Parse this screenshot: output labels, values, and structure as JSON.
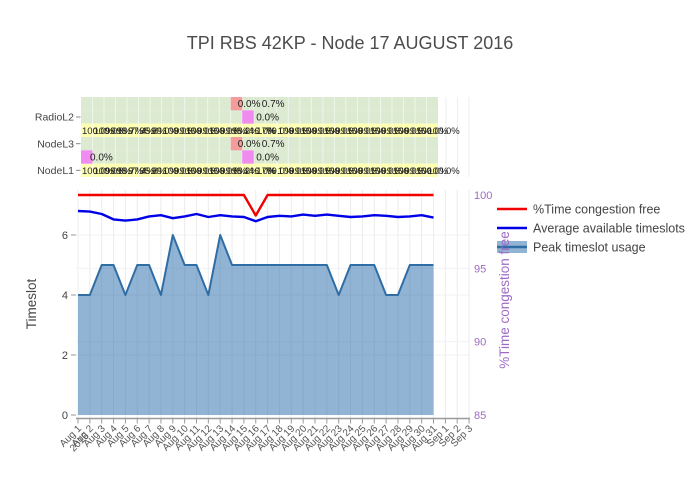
{
  "title": "TPI RBS 42KP - Node 17 AUGUST 2016",
  "legend": {
    "items": [
      {
        "label": "%Time congestion free"
      },
      {
        "label": "Average available timeslots"
      },
      {
        "label": "Peak timeslot usage"
      }
    ]
  },
  "chart_data": [
    {
      "type": "heatmap",
      "row_categories": [
        "RadioL2",
        "NodeL3",
        "NodeL1"
      ],
      "days": 31,
      "row_styles": [
        "green",
        "green",
        "yellow",
        "green",
        "green",
        "yellow"
      ],
      "palette": {
        "green": "#dcead2",
        "yellow": "#ffffb2",
        "red": "#f49c9c",
        "magenta": "#f08cf0"
      },
      "cells": [
        {
          "row": 0,
          "day": 14,
          "color": "red",
          "label": "0.0%",
          "dx": 7
        },
        {
          "row": 0,
          "day": 16,
          "color": null,
          "label": "0.7%",
          "dx": 8
        },
        {
          "row": 1,
          "day": 15,
          "color": "magenta",
          "label": "0.0%",
          "dx": 14
        },
        {
          "row": 3,
          "day": 14,
          "color": "red",
          "label": "0.0%",
          "dx": 7
        },
        {
          "row": 3,
          "day": 16,
          "color": null,
          "label": "0.7%",
          "dx": 8
        },
        {
          "row": 4,
          "day": 1,
          "color": "magenta",
          "label": "0.0%",
          "dx": 9
        },
        {
          "row": 4,
          "day": 15,
          "color": "magenta",
          "label": "0.0%",
          "dx": 14
        }
      ],
      "yellow_row_values": [
        "100.0%",
        "100.0%",
        "99.6%",
        "98.7%",
        "97.4%",
        "95.8%",
        "99.0%",
        "100.0%",
        "99.6%",
        "100.0%",
        "99.6%",
        "100.0%",
        "99.6%",
        "98.2%",
        "44.17%",
        "0.0%",
        "70.0%",
        "100.0%",
        "99.6%",
        "100.0%",
        "99.6%",
        "100.0%",
        "99.6%",
        "100.0%",
        "99.6%",
        "100.0%",
        "99.6%",
        "100.0%",
        "99.6%",
        "100.0%",
        "100.0%"
      ]
    },
    {
      "type": "line",
      "x_labels": [
        "Aug 1",
        "Aug 2",
        "Aug 3",
        "Aug 4",
        "Aug 5",
        "Aug 6",
        "Aug 7",
        "Aug 8",
        "Aug 9",
        "Aug 10",
        "Aug 11",
        "Aug 12",
        "Aug 13",
        "Aug 14",
        "Aug 15",
        "Aug 16",
        "Aug 17",
        "Aug 18",
        "Aug 19",
        "Aug 20",
        "Aug 21",
        "Aug 22",
        "Aug 23",
        "Aug 24",
        "Aug 25",
        "Aug 26",
        "Aug 27",
        "Aug 28",
        "Aug 29",
        "Aug 30",
        "Aug 31",
        "Sep 1",
        "Sep 2",
        "Sep 3"
      ],
      "x_first_label_year": "2016",
      "series": [
        {
          "name": "%Time congestion free",
          "axis": "right",
          "color": "#f10000",
          "values": [
            100,
            100,
            100,
            100,
            100,
            100,
            100,
            100,
            100,
            100,
            100,
            100,
            100,
            100,
            100,
            98.6,
            100,
            100,
            100,
            100,
            100,
            100,
            100,
            100,
            100,
            100,
            100,
            100,
            100,
            100,
            100
          ]
        },
        {
          "name": "Average available timeslots",
          "axis": "left",
          "color": "#0000e8",
          "values": [
            6.8,
            6.78,
            6.7,
            6.52,
            6.48,
            6.52,
            6.62,
            6.66,
            6.56,
            6.62,
            6.7,
            6.6,
            6.66,
            6.62,
            6.6,
            6.46,
            6.6,
            6.64,
            6.62,
            6.68,
            6.64,
            6.68,
            6.64,
            6.6,
            6.62,
            6.66,
            6.64,
            6.6,
            6.62,
            6.66,
            6.58
          ]
        },
        {
          "name": "Peak timeslot usage",
          "axis": "left",
          "color": "#2f6da5",
          "fill": "rgba(35,105,170,0.5)",
          "fill_solid": "#91b4d4",
          "values": [
            4,
            4,
            5,
            5,
            4,
            5,
            5,
            4,
            6,
            5,
            5,
            4,
            6,
            5,
            5,
            5,
            5,
            5,
            5,
            5,
            5,
            5,
            4,
            5,
            5,
            5,
            4,
            4,
            5,
            5,
            5
          ]
        }
      ],
      "left_axis": {
        "title": "Timeslot",
        "ticks": [
          0,
          2,
          4,
          6
        ],
        "range": [
          0,
          7.5
        ]
      },
      "right_axis": {
        "title": "%Time congestion free",
        "ticks": [
          85,
          90,
          95,
          100
        ],
        "range": [
          85,
          100.2
        ],
        "color": "#9e6bc5"
      },
      "legend_position": "right"
    }
  ]
}
